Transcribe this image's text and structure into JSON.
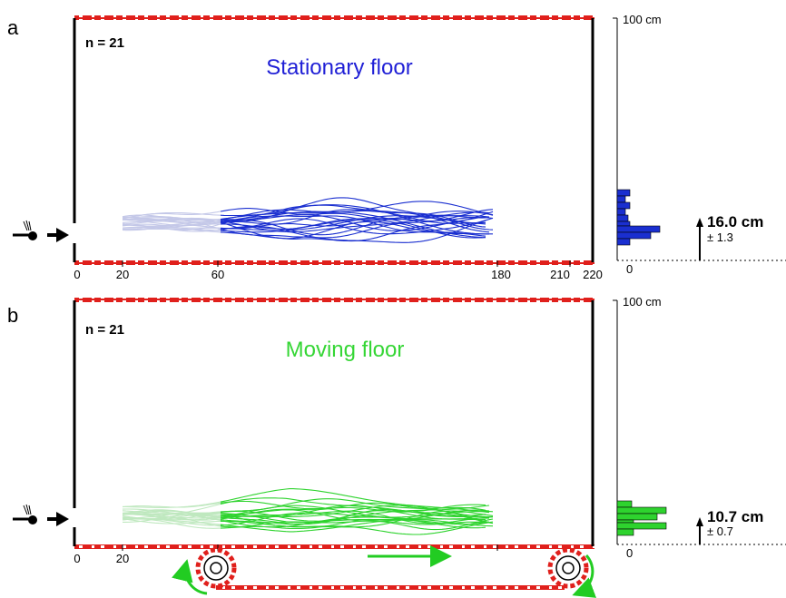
{
  "panels": [
    {
      "panel_label": "a",
      "n_label": "n = 21",
      "title": "Stationary floor",
      "title_color": "#1f1fd6",
      "trace_color": "#1a2fd0",
      "early_trace_color": "#c4c8e8",
      "x_ticks": [
        "0",
        "20",
        "60",
        "180",
        "210",
        "220"
      ],
      "hist_top_label": "100 cm",
      "hist_zero_label": "0",
      "mean_value": "16.0 cm",
      "mean_error": "± 1.3",
      "hist_color": "#1a2fd0"
    },
    {
      "panel_label": "b",
      "n_label": "n = 21",
      "title": "Moving floor",
      "title_color": "#35d635",
      "trace_color": "#2ed32e",
      "early_trace_color": "#bfe8bf",
      "x_ticks": [
        "0",
        "20"
      ],
      "hist_top_label": "100 cm",
      "hist_zero_label": "0",
      "mean_value": "10.7 cm",
      "mean_error": "± 0.7",
      "hist_color": "#2ed32e"
    }
  ],
  "colors": {
    "rail_red": "#e0201c",
    "belt_arrow_green": "#22cc22"
  }
}
